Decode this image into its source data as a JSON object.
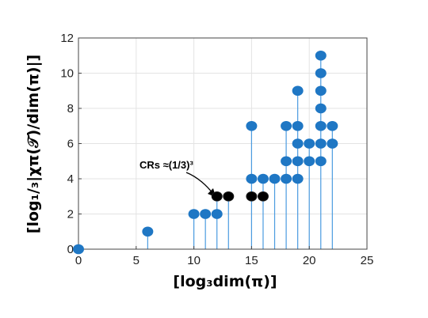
{
  "chart_data": {
    "type": "scatter",
    "style": "stem",
    "xlabel": "[log₃dim(π)]",
    "ylabel": "[log₁/₃|χπ(𝒯)/dim(π)|]",
    "xlim": [
      0,
      25
    ],
    "ylim": [
      0,
      12
    ],
    "x_ticks": [
      "0",
      "5",
      "10",
      "15",
      "20",
      "25"
    ],
    "y_ticks": [
      "0",
      "2",
      "4",
      "6",
      "8",
      "10",
      "12"
    ],
    "grid": true,
    "annotation": "CRs ≈(1/3)³",
    "colors": {
      "points": "#1f77c4",
      "stems": "#4a9be0",
      "highlight": "#000000",
      "grid": "#e3e3e3",
      "axis": "#444444"
    },
    "series": [
      {
        "points": [
          [
            0,
            0
          ],
          [
            6,
            1
          ],
          [
            10,
            2
          ],
          [
            11,
            2
          ],
          [
            12,
            2
          ],
          [
            15,
            4
          ],
          [
            15,
            7
          ],
          [
            16,
            4
          ],
          [
            17,
            4
          ],
          [
            18,
            4
          ],
          [
            18,
            5
          ],
          [
            18,
            7
          ],
          [
            19,
            4
          ],
          [
            19,
            5
          ],
          [
            19,
            6
          ],
          [
            19,
            7
          ],
          [
            19,
            9
          ],
          [
            20,
            5
          ],
          [
            20,
            6
          ],
          [
            21,
            5
          ],
          [
            21,
            6
          ],
          [
            21,
            7
          ],
          [
            21,
            8
          ],
          [
            21,
            9
          ],
          [
            21,
            10
          ],
          [
            21,
            11
          ],
          [
            22,
            6
          ],
          [
            22,
            7
          ]
        ]
      },
      {
        "highlighted": true,
        "points": [
          [
            12,
            3
          ],
          [
            13,
            3
          ],
          [
            15,
            3
          ],
          [
            16,
            3
          ]
        ]
      }
    ]
  }
}
